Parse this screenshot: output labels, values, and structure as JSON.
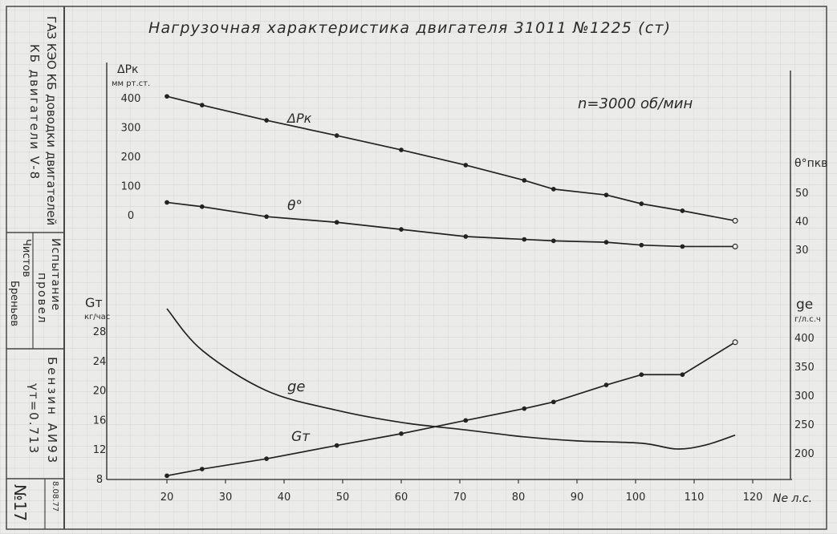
{
  "sidebar": {
    "org_line1": "ГАЗ КЭО КБ доводки двигателей",
    "org_line2": "КБ двигатели V-8",
    "test_label_line1": "Испытание",
    "test_label_line2": "провел",
    "tester_line1": "Чистов",
    "tester_line2": "Бреньев",
    "fuel": "Бензин АИ93",
    "fuel_density": "γт=0.713",
    "date": "8.08.77",
    "sheet_number": "№17"
  },
  "chart_data": {
    "type": "line",
    "title": "Нагрузочная характеристика двигателя 31011 №1225 (ст)",
    "annotation": "n=3000 об/мин",
    "xlabel": "Ne л.с.",
    "xlim": [
      20,
      120
    ],
    "x_ticks": [
      20,
      30,
      40,
      50,
      60,
      70,
      80,
      90,
      100,
      110,
      120
    ],
    "grid": true,
    "y_axes": [
      {
        "label": "ΔPк",
        "unit": "мм рт.ст.",
        "side": "left",
        "ylim": [
          0,
          400
        ],
        "ticks": [
          400,
          300,
          200,
          100,
          0
        ]
      },
      {
        "label": "Gт",
        "unit": "кг/час",
        "side": "left",
        "ylim": [
          8,
          28
        ],
        "ticks": [
          28,
          24,
          20,
          16,
          12,
          8
        ]
      },
      {
        "label": "θ°пкв",
        "side": "right",
        "ylim": [
          30,
          50
        ],
        "ticks": [
          50,
          40,
          30
        ]
      },
      {
        "label": "ge",
        "unit": "г/л.с.ч",
        "side": "right",
        "ylim": [
          200,
          400
        ],
        "ticks": [
          400,
          350,
          300,
          250,
          200
        ]
      }
    ],
    "series": [
      {
        "name": "ΔPк",
        "axis": 0,
        "markers": true,
        "x": [
          20,
          26,
          37,
          49,
          60,
          71,
          81,
          86,
          95,
          101,
          108,
          117
        ],
        "y": [
          405,
          375,
          323,
          271,
          222,
          170,
          118,
          88,
          68,
          38,
          14,
          -20
        ]
      },
      {
        "name": "θ°",
        "axis": 2,
        "markers": true,
        "x": [
          20,
          26,
          37,
          49,
          60,
          71,
          81,
          86,
          95,
          101,
          108,
          117
        ],
        "y": [
          46.5,
          45,
          41.5,
          39.5,
          37,
          34.5,
          33.5,
          33,
          32.5,
          31.5,
          31,
          31
        ]
      },
      {
        "name": "ge",
        "axis": 3,
        "markers": false,
        "x": [
          20,
          26,
          37,
          49,
          60,
          71,
          81,
          90,
          101,
          107,
          112,
          117
        ],
        "y": [
          450,
          378,
          308,
          274,
          253,
          240,
          228,
          221,
          217,
          207,
          214,
          231
        ]
      },
      {
        "name": "Gт",
        "axis": 1,
        "markers": true,
        "x": [
          20,
          26,
          37,
          49,
          60,
          71,
          81,
          86,
          95,
          101,
          108,
          117
        ],
        "y": [
          8.4,
          9.3,
          10.7,
          12.5,
          14.1,
          15.9,
          17.5,
          18.4,
          20.7,
          22.1,
          22.1,
          26.5
        ]
      }
    ]
  }
}
